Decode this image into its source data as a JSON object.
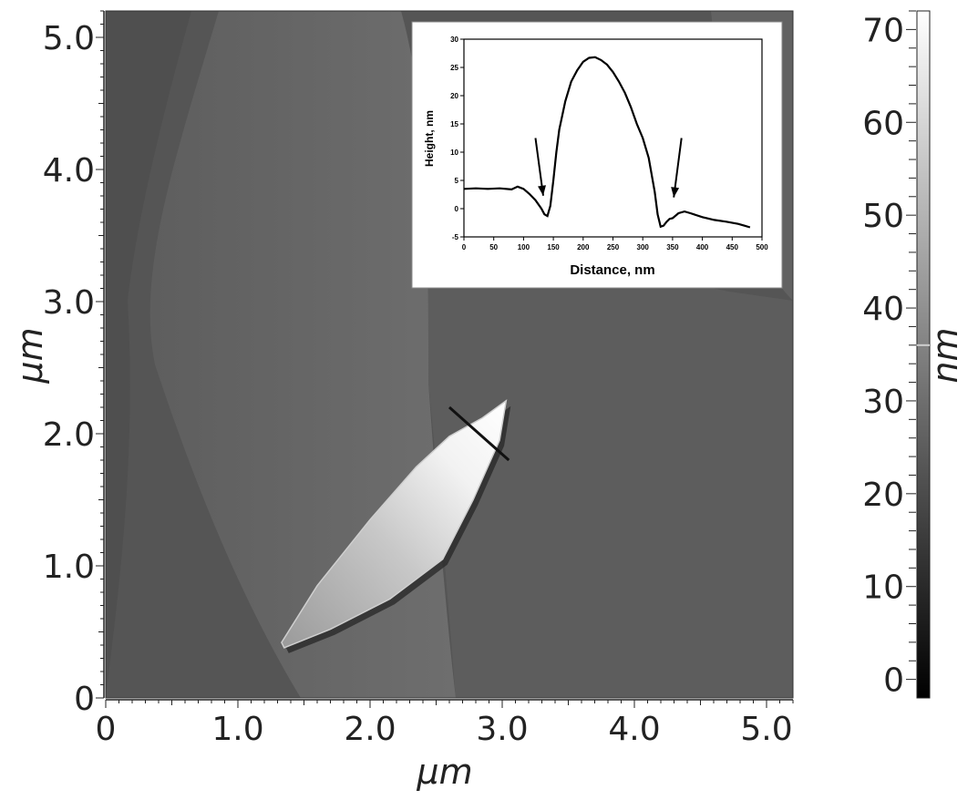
{
  "chart_data": [
    {
      "type": "heatmap",
      "description_role": "AFM topography image",
      "xlabel": "μm",
      "ylabel": "μm",
      "xlim": [
        0,
        5.2
      ],
      "ylim": [
        0,
        5.2
      ],
      "x_ticks": [
        "0",
        "1.0",
        "2.0",
        "3.0",
        "4.0",
        "5.0"
      ],
      "y_ticks": [
        "0",
        "1.0",
        "2.0",
        "3.0",
        "4.0",
        "5.0"
      ],
      "x_tick_values": [
        0,
        1,
        2,
        3,
        4,
        5
      ],
      "y_tick_values": [
        0,
        1,
        2,
        3,
        4,
        5
      ],
      "colorbar": {
        "label": "nm",
        "range": [
          -2,
          72
        ],
        "ticks": [
          "0",
          "10",
          "20",
          "30",
          "40",
          "50",
          "60",
          "70"
        ],
        "tick_values": [
          0,
          10,
          20,
          30,
          40,
          50,
          60,
          70
        ],
        "marker_value": 36,
        "colors": [
          "#000000",
          "#ffffff"
        ]
      },
      "profile_line": {
        "x": [
          2.6,
          3.05
        ],
        "y": [
          2.2,
          1.8
        ]
      },
      "feature": {
        "outline_x": [
          1.33,
          1.6,
          2.0,
          2.35,
          2.6,
          2.85,
          3.03,
          2.98,
          2.78,
          2.55,
          2.15,
          1.7,
          1.35
        ],
        "outline_y": [
          0.42,
          0.85,
          1.35,
          1.75,
          1.98,
          2.12,
          2.25,
          1.95,
          1.5,
          1.05,
          0.75,
          0.52,
          0.38
        ]
      }
    },
    {
      "type": "line",
      "description_role": "inset height profile",
      "xlabel": "Distance, nm",
      "ylabel": "Height, nm",
      "xlim": [
        0,
        500
      ],
      "ylim": [
        -5,
        30
      ],
      "x_ticks": [
        0,
        50,
        100,
        150,
        200,
        250,
        300,
        350,
        400,
        450,
        500
      ],
      "y_ticks": [
        -5,
        0,
        5,
        10,
        15,
        20,
        25,
        30
      ],
      "series": [
        {
          "x": [
            0,
            20,
            40,
            60,
            80,
            90,
            100,
            110,
            120,
            130,
            135,
            140,
            145,
            150,
            155,
            160,
            170,
            180,
            190,
            200,
            210,
            220,
            230,
            240,
            250,
            260,
            270,
            280,
            290,
            300,
            310,
            320,
            325,
            330,
            335,
            340,
            345,
            350,
            360,
            370,
            380,
            400,
            420,
            440,
            460,
            470,
            480
          ],
          "y": [
            3.5,
            3.6,
            3.5,
            3.6,
            3.4,
            3.9,
            3.5,
            2.6,
            1.5,
            0,
            -1.0,
            -1.3,
            0.5,
            5,
            10,
            14,
            19,
            22.5,
            24.5,
            26,
            26.7,
            26.8,
            26.3,
            25.5,
            24.2,
            22.5,
            20.5,
            18,
            15,
            12.5,
            9,
            3,
            -1,
            -3.2,
            -3.0,
            -2.3,
            -1.8,
            -1.7,
            -0.8,
            -0.5,
            -0.8,
            -1.5,
            -2.0,
            -2.3,
            -2.7,
            -3.0,
            -3.3
          ]
        }
      ],
      "arrows": [
        {
          "from": [
            120,
            12.5
          ],
          "to": [
            133,
            2.3
          ]
        },
        {
          "from": [
            365,
            12.5
          ],
          "to": [
            352,
            2.0
          ]
        }
      ]
    }
  ]
}
